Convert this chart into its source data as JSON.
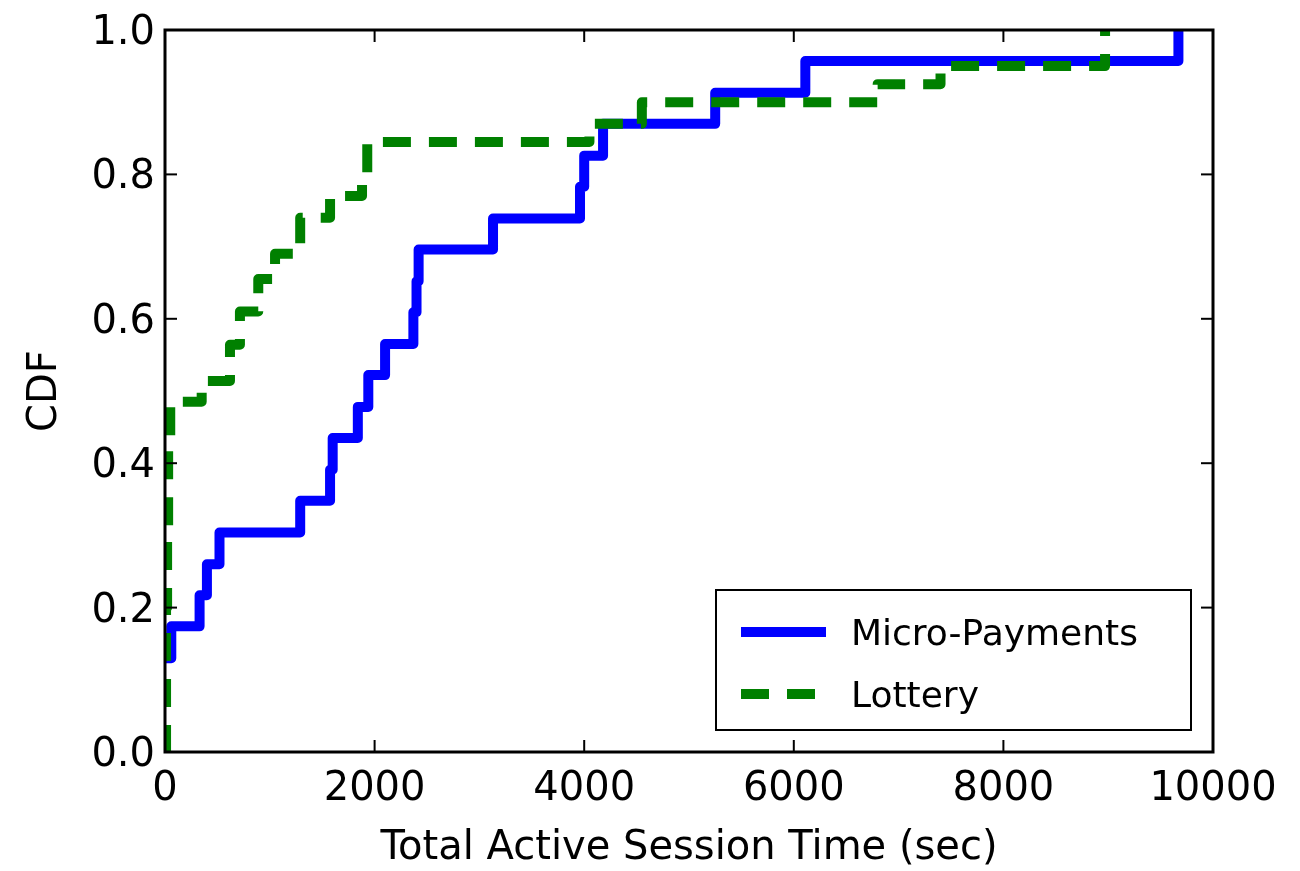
{
  "chart_data": {
    "type": "step",
    "xlabel": "Total Active Session Time (sec)",
    "ylabel": "CDF",
    "xlim": [
      0,
      10000
    ],
    "xticks": [
      0,
      2000,
      4000,
      6000,
      8000,
      10000
    ],
    "ylim": [
      0,
      1
    ],
    "yticks": [
      {
        "value": 0,
        "label": "0.0"
      },
      {
        "value": 0.2,
        "label": "0.2"
      },
      {
        "value": 0.4,
        "label": "0.4"
      },
      {
        "value": 0.6,
        "label": "0.6"
      },
      {
        "value": 0.8,
        "label": "0.8"
      },
      {
        "value": 1,
        "label": "1.0"
      }
    ],
    "grid": false,
    "legend": "bottom right",
    "series": [
      {
        "name": "Micro-Payments",
        "color": "#0000ff",
        "line_style": "solid",
        "x": [
          0,
          30,
          60,
          330,
          400,
          520,
          1290,
          1575,
          1600,
          1840,
          1940,
          2100,
          2370,
          2400,
          2420,
          3130,
          3960,
          4000,
          4180,
          5250,
          6110,
          9670
        ],
        "values": [
          0.13,
          0.13,
          0.174,
          0.217,
          0.26,
          0.304,
          0.348,
          0.391,
          0.435,
          0.478,
          0.522,
          0.565,
          0.609,
          0.652,
          0.696,
          0.739,
          0.783,
          0.826,
          0.87,
          0.913,
          0.957,
          1.0
        ]
      },
      {
        "name": "Lottery",
        "color": "#008000",
        "line_style": "dashed",
        "x": [
          0,
          10,
          20,
          30,
          50,
          350,
          620,
          715,
          890,
          1050,
          1290,
          1575,
          1880,
          1930,
          4050,
          4550,
          6800,
          7400,
          8970
        ],
        "values": [
          0,
          0.2,
          0.3,
          0.43,
          0.485,
          0.514,
          0.564,
          0.61,
          0.655,
          0.69,
          0.74,
          0.77,
          0.8,
          0.845,
          0.87,
          0.9,
          0.925,
          0.95,
          1.0
        ]
      }
    ]
  }
}
